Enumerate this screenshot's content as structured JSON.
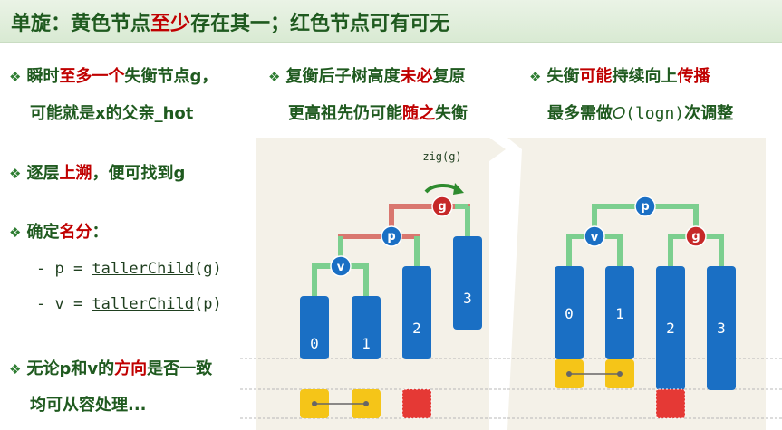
{
  "title": {
    "part1": "单旋：黄色节点",
    "part2": "至少",
    "part3": "存在其一；红色节点可有可无"
  },
  "col1": {
    "b1_line1_pre": "瞬时",
    "b1_line1_red": "至多一个",
    "b1_line1_post": "失衡节点g，",
    "b1_line2": "可能就是x的父亲_hot",
    "b2_pre": "逐层",
    "b2_red": "上溯",
    "b2_post": "，便可找到g",
    "b3_pre": "确定",
    "b3_red": "名分",
    "b3_post": "：",
    "code1_pre": "- p = ",
    "code1_fn": "tallerChild",
    "code1_post": "(g)",
    "code2_pre": "- v = ",
    "code2_fn": "tallerChild",
    "code2_post": "(p)",
    "b4_line1_pre": "无论p和v的",
    "b4_line1_red": "方向",
    "b4_line1_post": "是否一致",
    "b4_line2": "均可从容处理..."
  },
  "col2": {
    "line1_pre": "复衡后子树高度",
    "line1_red": "未必",
    "line1_post": "复原",
    "line2_pre": "更高祖先仍可能",
    "line2_red": "随之",
    "line2_post": "失衡"
  },
  "col3": {
    "line1_pre": "失衡",
    "line1_red1": "可能",
    "line1_mid": "持续向上",
    "line1_red2": "传播",
    "line2_pre": "最多需做",
    "line2_mono": "𝑂(logn)",
    "line2_post": "次调整"
  },
  "diagram": {
    "rotation_label": "zig(g)",
    "left_nodes": {
      "g": "g",
      "p": "p",
      "v": "v"
    },
    "left_bars": [
      "0",
      "1",
      "2",
      "3"
    ],
    "right_nodes": {
      "p": "p",
      "v": "v",
      "g": "g"
    },
    "right_bars": [
      "0",
      "1",
      "2",
      "3"
    ]
  },
  "colors": {
    "blue": "#1a6fc4",
    "red_node": "#c62828",
    "green_edge": "#7ccf8f",
    "red_edge": "#d9776f",
    "yellow": "#f5c518",
    "red_block": "#e53935",
    "bg_panel": "#f4f1e8"
  }
}
